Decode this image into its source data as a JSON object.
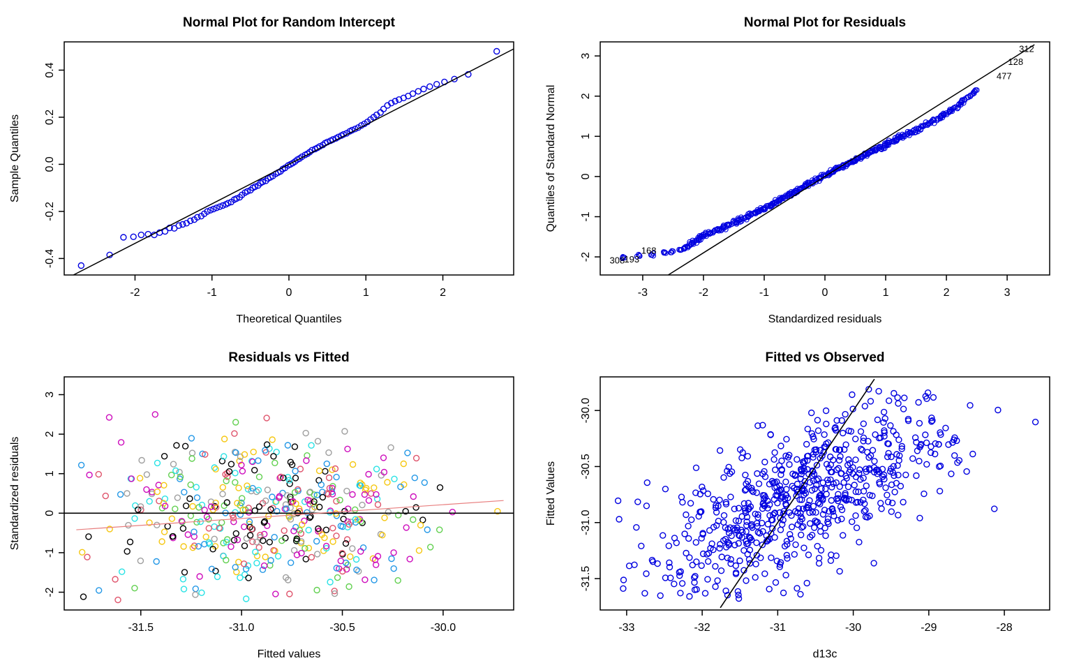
{
  "figure": {
    "background": "#FFFFFF",
    "layout": "2x2 grid of base-R diagnostic plots"
  },
  "chart_data": [
    {
      "type": "scatter",
      "subtype": "qqplot",
      "title": "Normal Plot for Random Intercept",
      "xlabel": "Theoretical Quantiles",
      "ylabel": "Sample Quantiles",
      "xlim": [
        -2.92,
        2.92
      ],
      "ylim": [
        -0.47,
        0.52
      ],
      "xticks": {
        "values": [
          -2,
          -1,
          0,
          1,
          2
        ],
        "labels": [
          "-2",
          "-1",
          "0",
          "1",
          "2"
        ]
      },
      "yticks": {
        "values": [
          -0.4,
          -0.2,
          0.0,
          0.2,
          0.4
        ],
        "labels": [
          "-0.4",
          "-0.2",
          "0.0",
          "0.2",
          "0.4"
        ]
      },
      "grid": false,
      "point_style": {
        "color": "#0000E0",
        "radius": 4,
        "stroke_width": 1.4
      },
      "lines": [
        {
          "x1": -2.8,
          "y1": -0.47,
          "x2": 2.92,
          "y2": 0.49,
          "color": "#000000",
          "width": 1.5
        }
      ],
      "points": [
        [
          -2.7,
          -0.43
        ],
        [
          -2.33,
          -0.385
        ],
        [
          -2.15,
          -0.31
        ],
        [
          -2.02,
          -0.308
        ],
        [
          -1.92,
          -0.3
        ],
        [
          -1.83,
          -0.297
        ],
        [
          -1.75,
          -0.3
        ],
        [
          -1.68,
          -0.29
        ],
        [
          -1.61,
          -0.285
        ],
        [
          -1.55,
          -0.27
        ],
        [
          -1.49,
          -0.272
        ],
        [
          -1.43,
          -0.26
        ],
        [
          -1.38,
          -0.255
        ],
        [
          -1.33,
          -0.25
        ],
        [
          -1.28,
          -0.24
        ],
        [
          -1.23,
          -0.235
        ],
        [
          -1.19,
          -0.225
        ],
        [
          -1.14,
          -0.22
        ],
        [
          -1.1,
          -0.21
        ],
        [
          -1.06,
          -0.2
        ],
        [
          -1.02,
          -0.195
        ],
        [
          -0.98,
          -0.19
        ],
        [
          -0.94,
          -0.185
        ],
        [
          -0.9,
          -0.18
        ],
        [
          -0.86,
          -0.175
        ],
        [
          -0.82,
          -0.17
        ],
        [
          -0.79,
          -0.165
        ],
        [
          -0.75,
          -0.16
        ],
        [
          -0.71,
          -0.15
        ],
        [
          -0.68,
          -0.145
        ],
        [
          -0.64,
          -0.14
        ],
        [
          -0.61,
          -0.13
        ],
        [
          -0.57,
          -0.12
        ],
        [
          -0.54,
          -0.115
        ],
        [
          -0.5,
          -0.11
        ],
        [
          -0.47,
          -0.1
        ],
        [
          -0.44,
          -0.095
        ],
        [
          -0.4,
          -0.09
        ],
        [
          -0.37,
          -0.08
        ],
        [
          -0.34,
          -0.075
        ],
        [
          -0.3,
          -0.07
        ],
        [
          -0.27,
          -0.06
        ],
        [
          -0.24,
          -0.055
        ],
        [
          -0.21,
          -0.05
        ],
        [
          -0.17,
          -0.04
        ],
        [
          -0.14,
          -0.035
        ],
        [
          -0.11,
          -0.03
        ],
        [
          -0.08,
          -0.02
        ],
        [
          -0.05,
          -0.015
        ],
        [
          -0.01,
          -0.005
        ],
        [
          0.02,
          0.0
        ],
        [
          0.05,
          0.005
        ],
        [
          0.08,
          0.012
        ],
        [
          0.11,
          0.02
        ],
        [
          0.14,
          0.025
        ],
        [
          0.17,
          0.032
        ],
        [
          0.21,
          0.04
        ],
        [
          0.24,
          0.045
        ],
        [
          0.27,
          0.052
        ],
        [
          0.3,
          0.06
        ],
        [
          0.34,
          0.065
        ],
        [
          0.37,
          0.07
        ],
        [
          0.4,
          0.076
        ],
        [
          0.44,
          0.082
        ],
        [
          0.47,
          0.09
        ],
        [
          0.5,
          0.095
        ],
        [
          0.54,
          0.1
        ],
        [
          0.57,
          0.105
        ],
        [
          0.61,
          0.11
        ],
        [
          0.64,
          0.116
        ],
        [
          0.68,
          0.122
        ],
        [
          0.71,
          0.127
        ],
        [
          0.75,
          0.132
        ],
        [
          0.79,
          0.14
        ],
        [
          0.82,
          0.145
        ],
        [
          0.86,
          0.15
        ],
        [
          0.9,
          0.156
        ],
        [
          0.94,
          0.165
        ],
        [
          0.98,
          0.172
        ],
        [
          1.02,
          0.18
        ],
        [
          1.06,
          0.19
        ],
        [
          1.1,
          0.2
        ],
        [
          1.14,
          0.21
        ],
        [
          1.19,
          0.22
        ],
        [
          1.23,
          0.235
        ],
        [
          1.28,
          0.25
        ],
        [
          1.33,
          0.26
        ],
        [
          1.38,
          0.268
        ],
        [
          1.43,
          0.275
        ],
        [
          1.49,
          0.282
        ],
        [
          1.55,
          0.29
        ],
        [
          1.61,
          0.3
        ],
        [
          1.68,
          0.31
        ],
        [
          1.75,
          0.32
        ],
        [
          1.83,
          0.33
        ],
        [
          1.92,
          0.34
        ],
        [
          2.02,
          0.35
        ],
        [
          2.15,
          0.362
        ],
        [
          2.33,
          0.382
        ],
        [
          2.7,
          0.48
        ]
      ]
    },
    {
      "type": "scatter",
      "subtype": "qqplot",
      "title": "Normal Plot for Residuals",
      "xlabel": "Standardized residuals",
      "ylabel": "Quantiles of Standard Normal",
      "xlim": [
        -3.7,
        3.7
      ],
      "ylim": [
        -2.45,
        3.35
      ],
      "xticks": {
        "values": [
          -3,
          -2,
          -1,
          0,
          1,
          2,
          3
        ],
        "labels": [
          "-3",
          "-2",
          "-1",
          "0",
          "1",
          "2",
          "3"
        ]
      },
      "yticks": {
        "values": [
          -2,
          -1,
          0,
          1,
          2,
          3
        ],
        "labels": [
          "-2",
          "-1",
          "0",
          "1",
          "2",
          "3"
        ]
      },
      "grid": false,
      "point_style": {
        "color": "#0000E0",
        "radius": 3.4,
        "stroke_width": 1.1
      },
      "band": {
        "copies": 3,
        "dx": 0.05,
        "dy": 0.04,
        "seed": 11
      },
      "lines": [
        {
          "x1": -2.58,
          "y1": -2.45,
          "x2": 3.45,
          "y2": 3.28,
          "color": "#000000",
          "width": 1.5
        }
      ],
      "point_labels": [
        {
          "text": "312",
          "x": 3.32,
          "y": 3.1
        },
        {
          "text": "128",
          "x": 3.14,
          "y": 2.78
        },
        {
          "text": "477",
          "x": 2.95,
          "y": 2.42
        },
        {
          "text": "308",
          "x": -3.42,
          "y": -2.16
        },
        {
          "text": "193",
          "x": -3.18,
          "y": -2.14
        },
        {
          "text": "168",
          "x": -2.9,
          "y": -1.92
        }
      ],
      "points": [
        [
          -3.3,
          -2.02
        ],
        [
          -3.05,
          -1.98
        ],
        [
          -2.85,
          -1.95
        ],
        [
          -2.65,
          -1.9
        ],
        [
          -2.5,
          -1.86
        ],
        [
          -2.4,
          -1.82
        ],
        [
          -2.32,
          -1.78
        ],
        [
          -2.26,
          -1.74
        ],
        [
          -2.21,
          -1.7
        ],
        [
          -2.18,
          -1.66
        ],
        [
          -2.15,
          -1.62
        ],
        [
          -2.11,
          -1.58
        ],
        [
          -2.07,
          -1.54
        ],
        [
          -2.03,
          -1.5
        ],
        [
          -1.98,
          -1.46
        ],
        [
          -1.93,
          -1.43
        ],
        [
          -1.88,
          -1.4
        ],
        [
          -1.83,
          -1.37
        ],
        [
          -1.78,
          -1.34
        ],
        [
          -1.73,
          -1.31
        ],
        [
          -1.68,
          -1.28
        ],
        [
          -1.63,
          -1.25
        ],
        [
          -1.58,
          -1.22
        ],
        [
          -1.54,
          -1.19
        ],
        [
          -1.5,
          -1.16
        ],
        [
          -1.46,
          -1.13
        ],
        [
          -1.42,
          -1.1
        ],
        [
          -1.38,
          -1.07
        ],
        [
          -1.34,
          -1.04
        ],
        [
          -1.3,
          -1.01
        ],
        [
          -1.26,
          -0.98
        ],
        [
          -1.22,
          -0.95
        ],
        [
          -1.18,
          -0.92
        ],
        [
          -1.14,
          -0.89
        ],
        [
          -1.1,
          -0.86
        ],
        [
          -1.06,
          -0.83
        ],
        [
          -1.02,
          -0.8
        ],
        [
          -0.98,
          -0.77
        ],
        [
          -0.94,
          -0.74
        ],
        [
          -0.9,
          -0.71
        ],
        [
          -0.86,
          -0.68
        ],
        [
          -0.82,
          -0.65
        ],
        [
          -0.78,
          -0.61
        ],
        [
          -0.74,
          -0.58
        ],
        [
          -0.7,
          -0.55
        ],
        [
          -0.66,
          -0.51
        ],
        [
          -0.62,
          -0.48
        ],
        [
          -0.58,
          -0.45
        ],
        [
          -0.54,
          -0.41
        ],
        [
          -0.5,
          -0.38
        ],
        [
          -0.46,
          -0.35
        ],
        [
          -0.42,
          -0.31
        ],
        [
          -0.38,
          -0.28
        ],
        [
          -0.34,
          -0.25
        ],
        [
          -0.3,
          -0.22
        ],
        [
          -0.26,
          -0.18
        ],
        [
          -0.22,
          -0.15
        ],
        [
          -0.18,
          -0.12
        ],
        [
          -0.14,
          -0.08
        ],
        [
          -0.1,
          -0.05
        ],
        [
          -0.06,
          -0.02
        ],
        [
          -0.02,
          0.01
        ],
        [
          0.02,
          0.04
        ],
        [
          0.06,
          0.07
        ],
        [
          0.1,
          0.1
        ],
        [
          0.14,
          0.13
        ],
        [
          0.18,
          0.17
        ],
        [
          0.22,
          0.2
        ],
        [
          0.26,
          0.23
        ],
        [
          0.3,
          0.26
        ],
        [
          0.34,
          0.29
        ],
        [
          0.38,
          0.32
        ],
        [
          0.42,
          0.35
        ],
        [
          0.46,
          0.38
        ],
        [
          0.5,
          0.41
        ],
        [
          0.54,
          0.44
        ],
        [
          0.58,
          0.47
        ],
        [
          0.62,
          0.5
        ],
        [
          0.66,
          0.53
        ],
        [
          0.7,
          0.56
        ],
        [
          0.74,
          0.59
        ],
        [
          0.78,
          0.62
        ],
        [
          0.82,
          0.65
        ],
        [
          0.86,
          0.68
        ],
        [
          0.9,
          0.71
        ],
        [
          0.94,
          0.74
        ],
        [
          0.98,
          0.78
        ],
        [
          1.02,
          0.81
        ],
        [
          1.06,
          0.84
        ],
        [
          1.1,
          0.87
        ],
        [
          1.14,
          0.9
        ],
        [
          1.18,
          0.93
        ],
        [
          1.22,
          0.96
        ],
        [
          1.26,
          0.99
        ],
        [
          1.3,
          1.02
        ],
        [
          1.35,
          1.06
        ],
        [
          1.4,
          1.09
        ],
        [
          1.45,
          1.13
        ],
        [
          1.5,
          1.16
        ],
        [
          1.55,
          1.2
        ],
        [
          1.6,
          1.24
        ],
        [
          1.65,
          1.28
        ],
        [
          1.7,
          1.32
        ],
        [
          1.75,
          1.36
        ],
        [
          1.8,
          1.4
        ],
        [
          1.85,
          1.44
        ],
        [
          1.9,
          1.49
        ],
        [
          1.95,
          1.53
        ],
        [
          2.0,
          1.58
        ],
        [
          2.05,
          1.63
        ],
        [
          2.1,
          1.68
        ],
        [
          2.15,
          1.73
        ],
        [
          2.2,
          1.78
        ],
        [
          2.25,
          1.84
        ],
        [
          2.3,
          1.9
        ],
        [
          2.36,
          1.97
        ],
        [
          2.43,
          2.05
        ],
        [
          2.5,
          2.15
        ]
      ]
    },
    {
      "type": "scatter",
      "title": "Residuals vs Fitted",
      "xlabel": "Fitted values",
      "ylabel": "Standardized residuals",
      "xlim": [
        -31.88,
        -29.65
      ],
      "ylim": [
        -2.45,
        3.45
      ],
      "xticks": {
        "values": [
          -31.5,
          -31.0,
          -30.5,
          -30.0
        ],
        "labels": [
          "-31.5",
          "-31.0",
          "-30.5",
          "-30.0"
        ]
      },
      "yticks": {
        "values": [
          -2,
          -1,
          0,
          1,
          2,
          3
        ],
        "labels": [
          "-2",
          "-1",
          "0",
          "1",
          "2",
          "3"
        ]
      },
      "grid": false,
      "point_style": {
        "color": "#000000",
        "radius": 4,
        "stroke_width": 1.4
      },
      "n_points_approx": 480,
      "generate": {
        "seed": 42,
        "n": 480,
        "x_mean": -30.85,
        "x_sd": 0.42,
        "x_clip": [
          -31.8,
          -29.7
        ],
        "y_mean": 0,
        "y_sd": 1.02,
        "y_clip": [
          -2.2,
          3.2
        ],
        "palette": [
          "#000000",
          "#DF536B",
          "#61D04F",
          "#2297E6",
          "#28E2E5",
          "#CD0BBC",
          "#F5C710",
          "#9E9E9E"
        ]
      },
      "lines": [
        {
          "x1": -31.88,
          "y1": 0,
          "x2": -29.65,
          "y2": 0,
          "color": "#000000",
          "width": 1.6
        },
        {
          "x1": -31.82,
          "y1": -0.42,
          "x2": -29.7,
          "y2": 0.32,
          "color": "#E87E7E",
          "width": 1.2
        }
      ]
    },
    {
      "type": "scatter",
      "title": "Fitted vs Observed",
      "xlabel": "d13c",
      "ylabel": "Fitted Values",
      "xlim": [
        -33.35,
        -27.4
      ],
      "ylim": [
        -31.78,
        -29.7
      ],
      "xticks": {
        "values": [
          -33,
          -32,
          -31,
          -30,
          -29,
          -28
        ],
        "labels": [
          "-33",
          "-32",
          "-31",
          "-30",
          "-29",
          "-28"
        ]
      },
      "yticks": {
        "values": [
          -31.5,
          -31.0,
          -30.5,
          -30.0
        ],
        "labels": [
          "-31.5",
          "-31.0",
          "-30.5",
          "-30.0"
        ]
      },
      "grid": false,
      "point_style": {
        "color": "#0000E0",
        "radius": 4,
        "stroke_width": 1.4
      },
      "n_points_approx": 680,
      "generate": {
        "seed": 7,
        "n": 680,
        "x_mean": -30.7,
        "x_sd": 0.98,
        "x_clip": [
          -33.2,
          -27.45
        ],
        "y_base": -30.8,
        "y_slope": 0.3,
        "y_sd": 0.32,
        "y_clip": [
          -31.68,
          -29.76
        ],
        "palette": [
          "#0000E0"
        ]
      },
      "lines": [
        {
          "x1": -31.76,
          "y1": -31.76,
          "x2": -29.72,
          "y2": -29.72,
          "color": "#000000",
          "width": 1.6
        }
      ]
    }
  ]
}
